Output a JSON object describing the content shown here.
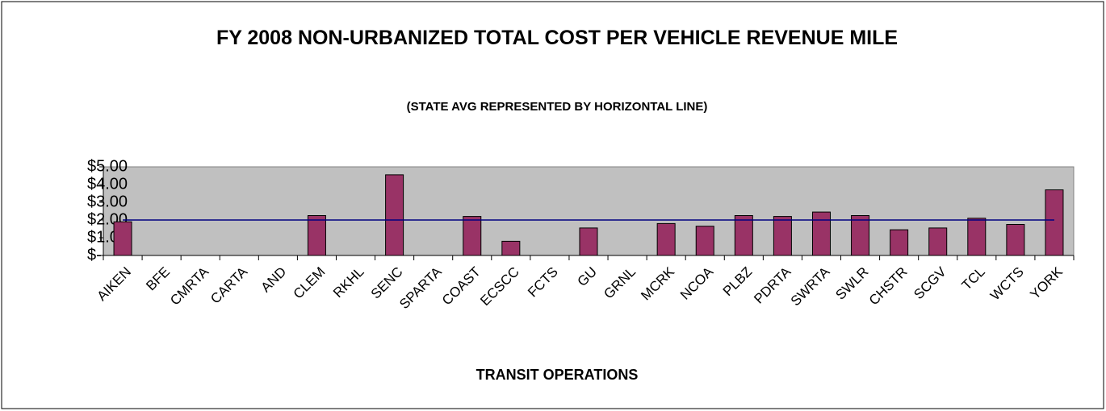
{
  "chart_data": {
    "type": "bar",
    "title": "FY 2008 NON-URBANIZED TOTAL COST PER VEHICLE REVENUE MILE",
    "subtitle": "(STATE AVG REPRESENTED BY HORIZONTAL LINE)",
    "x_label": "TRANSIT OPERATIONS",
    "categories": [
      "AIKEN",
      "BFE",
      "CMRTA",
      "CARTA",
      "AND",
      "CLEM",
      "RKHL",
      "SENC",
      "SPARTA",
      "COAST",
      "ECSCC",
      "FCTS",
      "GU",
      "GRNL",
      "MCRK",
      "NCOA",
      "PLBZ",
      "PDRTA",
      "SWRTA",
      "SWLR",
      "CHSTR",
      "SCGV",
      "TCL",
      "WCTS",
      "YORK"
    ],
    "values": [
      1.9,
      null,
      null,
      null,
      null,
      2.25,
      null,
      4.55,
      null,
      2.2,
      0.8,
      null,
      1.55,
      null,
      1.8,
      1.65,
      2.25,
      2.2,
      2.45,
      2.25,
      1.45,
      1.55,
      2.1,
      1.75,
      3.7
    ],
    "color": "#993366",
    "state_avg": 2,
    "state_avg_color": "#000080",
    "ylim": [
      0,
      5
    ],
    "yticks": [
      {
        "value": 0,
        "label": "$-"
      },
      {
        "value": 1,
        "label": "$1.00"
      },
      {
        "value": 2,
        "label": "$2.00"
      },
      {
        "value": 3,
        "label": "$3.00"
      },
      {
        "value": 4,
        "label": "$4.00"
      },
      {
        "value": 5,
        "label": "$5.00"
      }
    ]
  }
}
